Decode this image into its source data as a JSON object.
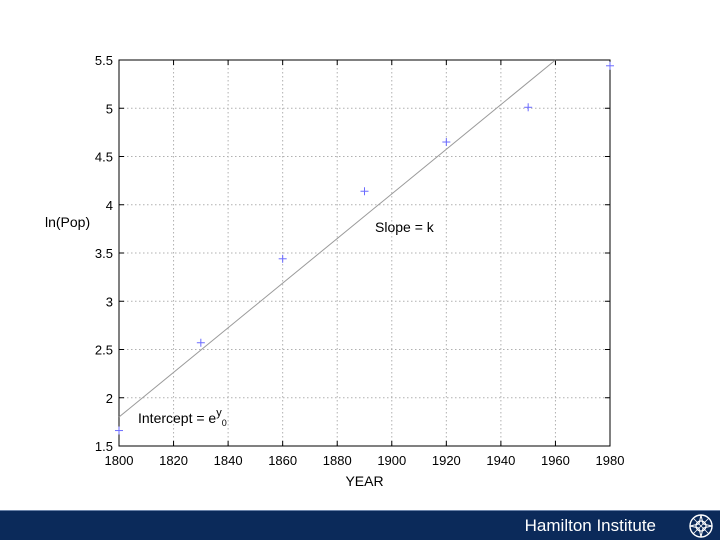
{
  "chart_data": {
    "type": "scatter",
    "xlabel": "YEAR",
    "ylabel": "ln(Pop)",
    "xlim": [
      1800,
      1980
    ],
    "ylim": [
      1.5,
      5.5
    ],
    "xticks": [
      1800,
      1820,
      1840,
      1860,
      1880,
      1900,
      1920,
      1940,
      1960,
      1980
    ],
    "yticks": [
      1.5,
      2,
      2.5,
      3,
      3.5,
      4,
      4.5,
      5,
      5.5
    ],
    "ytick_labels": [
      "1.5",
      "2",
      "2.5",
      "3",
      "3.5",
      "4",
      "4.5",
      "5",
      "5.5"
    ],
    "grid": true,
    "points": [
      {
        "x": 1800,
        "y": 1.66
      },
      {
        "x": 1830,
        "y": 2.57
      },
      {
        "x": 1860,
        "y": 3.44
      },
      {
        "x": 1890,
        "y": 4.14
      },
      {
        "x": 1920,
        "y": 4.65
      },
      {
        "x": 1950,
        "y": 5.01
      },
      {
        "x": 1980,
        "y": 5.44
      }
    ],
    "fit_line": {
      "x": [
        1800,
        1960
      ],
      "y": [
        1.8,
        5.5
      ]
    },
    "colors": {
      "marker": "#6b6bff",
      "line": "#9a9a9a",
      "grid": "#b0b0b0"
    },
    "annotations": {
      "slope": "Slope = k",
      "intercept_prefix": "Intercept = e",
      "intercept_sup": "y",
      "intercept_sub": "0"
    }
  },
  "footer": {
    "text": "Hamilton Institute",
    "logo_icon": "compass-rose-icon",
    "background": "#0b2a5a"
  }
}
